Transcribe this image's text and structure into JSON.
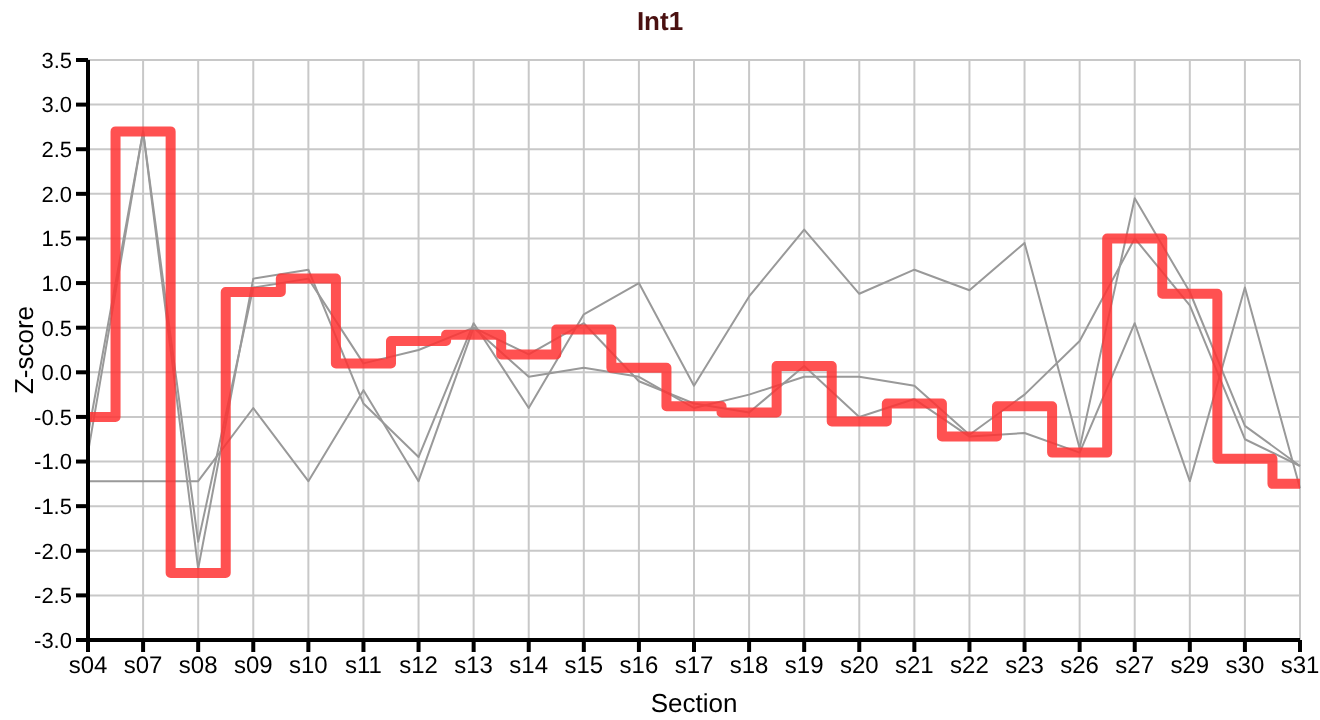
{
  "chart_data": {
    "type": "line",
    "title": "Int1",
    "xlabel": "Section",
    "ylabel": "Z-score",
    "categories": [
      "s04",
      "s07",
      "s08",
      "s09",
      "s10",
      "s11",
      "s12",
      "s13",
      "s14",
      "s15",
      "s16",
      "s17",
      "s18",
      "s19",
      "s20",
      "s21",
      "s22",
      "s23",
      "s26",
      "s27",
      "s29",
      "s30",
      "s31"
    ],
    "series": [
      {
        "color": "#999999",
        "values": [
          -0.9,
          2.7,
          -2.2,
          1.05,
          1.15,
          -0.35,
          -0.95,
          0.55,
          -0.4,
          0.65,
          1.0,
          -0.15,
          0.85,
          1.6,
          0.88,
          1.15,
          0.92,
          1.45,
          -0.85,
          1.95,
          0.9,
          -0.6,
          -1.05
        ]
      },
      {
        "color": "#999999",
        "values": [
          -0.7,
          2.7,
          -1.9,
          0.95,
          1.05,
          0.1,
          0.25,
          0.5,
          -0.05,
          0.05,
          -0.05,
          -0.4,
          -0.25,
          -0.05,
          -0.05,
          -0.15,
          -0.7,
          -0.25,
          0.35,
          1.5,
          0.75,
          -0.75,
          -1.05
        ]
      },
      {
        "color": "#999999",
        "values": [
          -1.22,
          -1.22,
          -1.22,
          -0.4,
          -1.22,
          -0.2,
          -1.22,
          0.5,
          0.2,
          0.55,
          -0.1,
          -0.35,
          -0.45,
          0.07,
          -0.5,
          -0.3,
          -0.72,
          -0.68,
          -0.9,
          0.55,
          -1.22,
          0.95,
          -1.3
        ]
      },
      {
        "type": "step",
        "color": "#ff3333",
        "values": [
          -0.5,
          2.7,
          -2.25,
          0.9,
          1.05,
          0.1,
          0.35,
          0.42,
          0.2,
          0.48,
          0.05,
          -0.38,
          -0.45,
          0.07,
          -0.55,
          -0.35,
          -0.72,
          -0.38,
          -0.9,
          1.5,
          0.88,
          -0.97,
          -1.25
        ]
      }
    ],
    "ylim": [
      -3.0,
      3.5
    ],
    "yticks": [
      {
        "value": -3,
        "label": "-3.0"
      },
      -2.5,
      {
        "value": -2,
        "label": "-2.0"
      },
      -1.5,
      {
        "value": -1,
        "label": "-1.0"
      },
      -0.5,
      {
        "value": 0,
        "label": "0.0"
      },
      0.5,
      {
        "value": 1,
        "label": "1.0"
      },
      1.5,
      {
        "value": 2,
        "label": "2.0"
      },
      2.5,
      {
        "value": 3,
        "label": "3.0"
      },
      3.5
    ],
    "grid": true,
    "legend": false
  }
}
